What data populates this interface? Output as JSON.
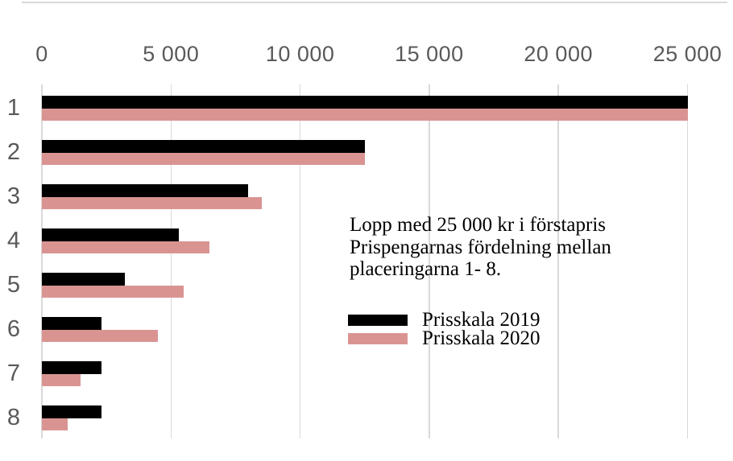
{
  "chart_data": {
    "type": "bar",
    "orientation": "horizontal",
    "title": "",
    "categories": [
      "1",
      "2",
      "3",
      "4",
      "5",
      "6",
      "7",
      "8"
    ],
    "series": [
      {
        "name": "Prisskala 2019",
        "color": "#000000",
        "values": [
          25000,
          12500,
          8000,
          5300,
          3200,
          2300,
          2300,
          2300
        ]
      },
      {
        "name": "Prisskala 2020",
        "color": "#d99492",
        "values": [
          25000,
          12500,
          8500,
          6500,
          5500,
          4500,
          1500,
          1000
        ]
      }
    ],
    "x_axis": {
      "position": "top",
      "min": 0,
      "max": 25000,
      "tick_interval": 5000,
      "tick_values": [
        0,
        5000,
        10000,
        15000,
        20000,
        25000
      ],
      "tick_labels": [
        "0",
        "5 000",
        "10 000",
        "15 000",
        "20 000",
        "25 000"
      ]
    },
    "grid": true,
    "annotation": {
      "lines": [
        "Lopp med 25 000 kr i förstapris",
        "Prispengarnas fördelning mellan",
        "placeringarna 1- 8."
      ]
    },
    "legend": {
      "position": "inside-right",
      "entries": [
        "Prisskala 2019",
        "Prisskala 2020"
      ]
    },
    "colors": {
      "grid": "#d9d9d9",
      "axis_text": "#595959",
      "category_text": "#595959",
      "background": "#ffffff",
      "top_border": "#d9d9d9"
    }
  }
}
